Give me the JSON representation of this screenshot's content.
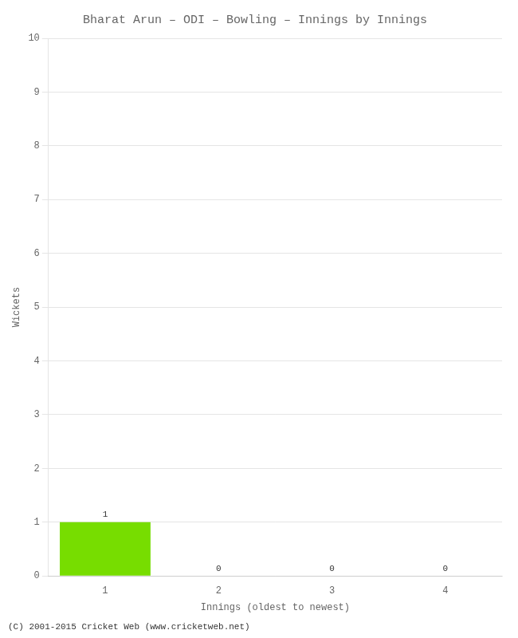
{
  "chart_data": {
    "type": "bar",
    "title": "Bharat Arun – ODI – Bowling – Innings by Innings",
    "x_label": "Innings (oldest to newest)",
    "y_label": "Wickets",
    "categories": [
      "1",
      "2",
      "3",
      "4"
    ],
    "values": [
      1,
      0,
      0,
      0
    ],
    "color": "#77dd00",
    "ylim": [
      0,
      10
    ],
    "yticks": [
      0,
      1,
      2,
      3,
      4,
      5,
      6,
      7,
      8,
      9,
      10
    ],
    "grid": true,
    "data_labels": true,
    "annotations": [
      "(C) 2001-2015 Cricket Web (www.cricketweb.net)"
    ]
  }
}
